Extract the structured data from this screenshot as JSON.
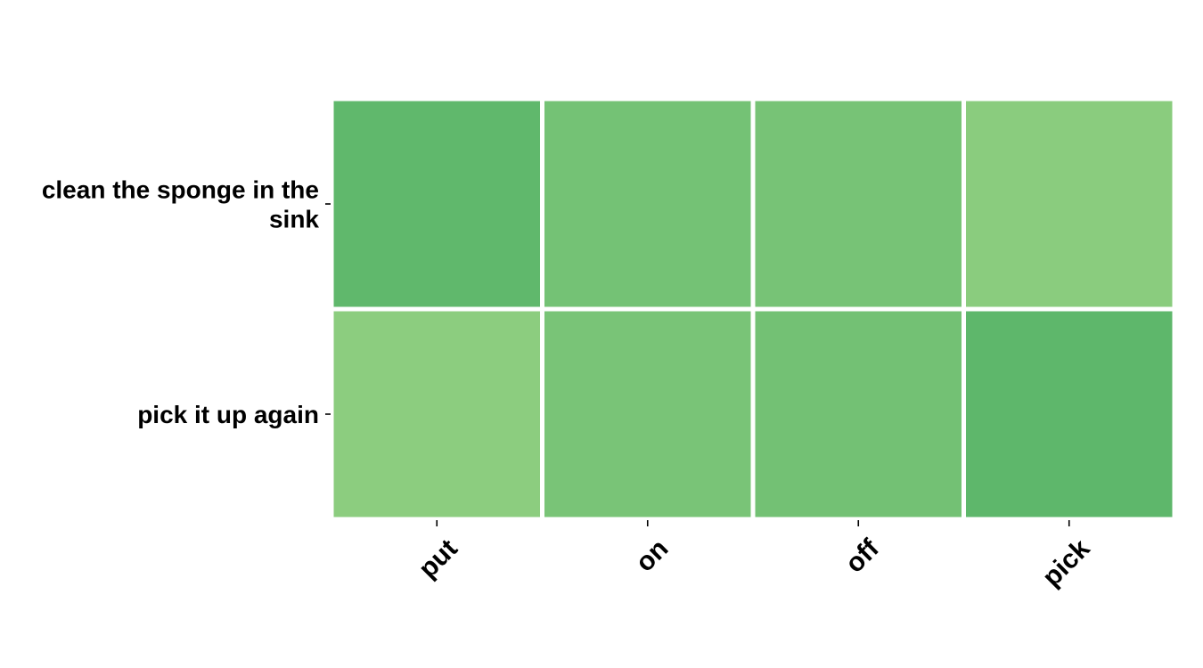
{
  "chart_data": {
    "type": "heatmap",
    "title": "",
    "xlabel": "",
    "ylabel": "",
    "x_categories": [
      "put",
      "on",
      "off",
      "pick"
    ],
    "y_categories": [
      {
        "lines": [
          "clean the sponge in the",
          "sink"
        ]
      },
      {
        "lines": [
          "pick it up again"
        ]
      }
    ],
    "values": [
      [
        0.78,
        0.55,
        0.52,
        0.3
      ],
      [
        0.28,
        0.5,
        0.56,
        0.8
      ]
    ],
    "colorscale": {
      "low": "#a5d98a",
      "high": "#4caf63"
    },
    "legend": false,
    "grid": false
  }
}
